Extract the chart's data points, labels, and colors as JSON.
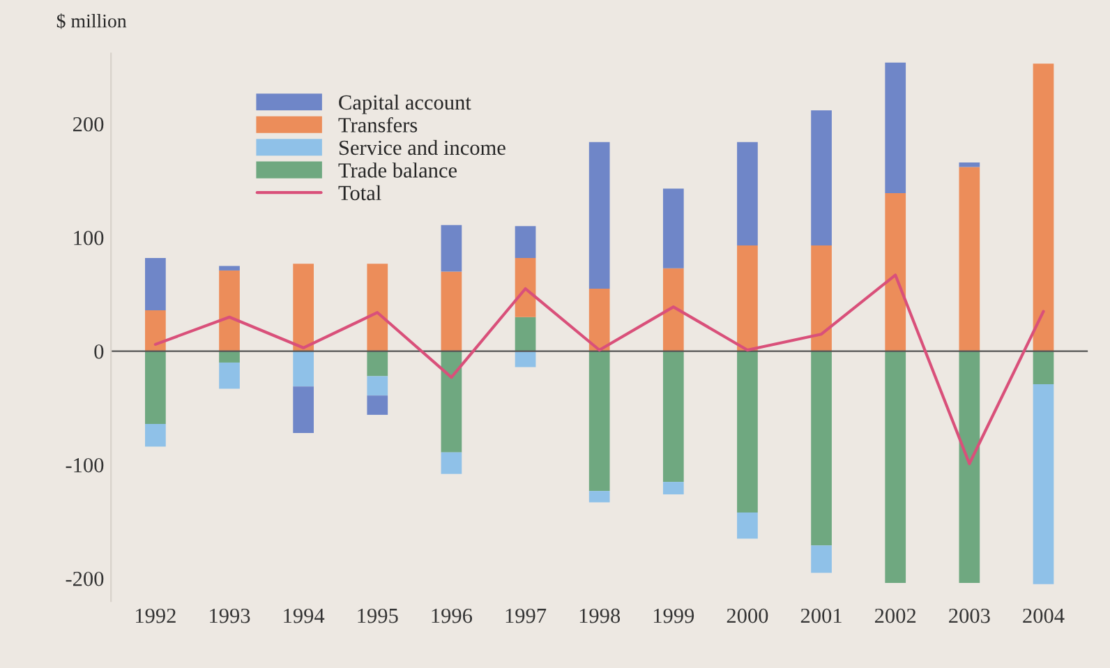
{
  "chart_data": {
    "type": "bar",
    "stacked": true,
    "ylabel": "$ million",
    "categories": [
      "1992",
      "1993",
      "1994",
      "1995",
      "1996",
      "1997",
      "1998",
      "1999",
      "2000",
      "2001",
      "2002",
      "2003",
      "2004"
    ],
    "series": [
      {
        "name": "Trade balance",
        "color": "#6fa880",
        "values": [
          -64,
          -10,
          0,
          -22,
          -89,
          30,
          -123,
          -115,
          -142,
          -171,
          -204,
          -204,
          -29
        ]
      },
      {
        "name": "Service and income",
        "color": "#8fc1e8",
        "values": [
          -20,
          -23,
          -31,
          -17,
          -19,
          -14,
          -10,
          -11,
          -23,
          -24,
          0,
          0,
          -176
        ]
      },
      {
        "name": "Transfers",
        "color": "#ec8d5a",
        "values": [
          36,
          71,
          77,
          77,
          70,
          52,
          55,
          73,
          93,
          93,
          139,
          162,
          253
        ]
      },
      {
        "name": "Capital account",
        "color": "#6f86c8",
        "values": [
          46,
          4,
          -41,
          -17,
          41,
          28,
          129,
          70,
          91,
          119,
          115,
          4,
          0
        ]
      },
      {
        "name": "Total",
        "type": "line",
        "color": "#d9507a",
        "values": [
          6,
          30,
          3,
          34,
          -23,
          55,
          1,
          39,
          1,
          15,
          67,
          -99,
          35
        ]
      }
    ],
    "ylim": [
      -220,
      262
    ],
    "yticks": [
      -200,
      -100,
      0,
      100,
      200
    ],
    "ref_lines": [
      {
        "axis": "y",
        "value": 0,
        "color": "#555555"
      }
    ],
    "grid": false,
    "legend": "top left"
  }
}
